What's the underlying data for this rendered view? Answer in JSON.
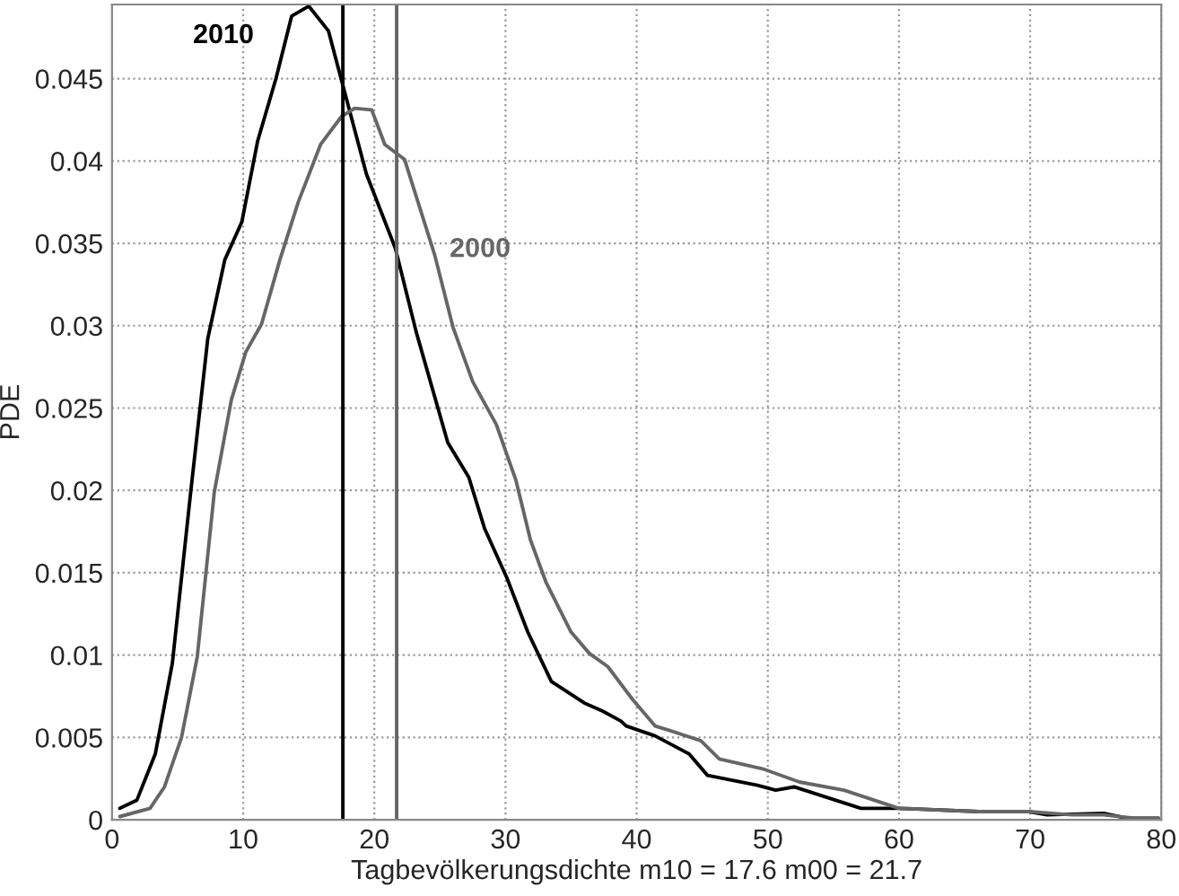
{
  "chart_data": {
    "type": "line",
    "xlabel": "Tagbevölkerungsdichte m10 = 17.6 m00 = 21.7",
    "ylabel": "PDE",
    "series": [
      {
        "name": "2010",
        "color": "#000000",
        "x": [
          0.6,
          1.9,
          3.3,
          4.6,
          6.0,
          7.3,
          8.6,
          9.9,
          11.1,
          12.5,
          13.7,
          15.0,
          16.5,
          17.3,
          19.4,
          21.6,
          23.2,
          25.6,
          27.2,
          28.4,
          30.1,
          31.7,
          33.5,
          36.0,
          37.4,
          38.8,
          39.2,
          41.4,
          44.0,
          45.4,
          49.2,
          50.6,
          52.0,
          57.1,
          60.0,
          66.1,
          69.9,
          71.3,
          75.6,
          77.4,
          79.8
        ],
        "values": [
          0.0007,
          0.0012,
          0.004,
          0.0095,
          0.0199,
          0.0292,
          0.034,
          0.0363,
          0.0412,
          0.045,
          0.0488,
          0.0494,
          0.0479,
          0.0455,
          0.0392,
          0.0347,
          0.0296,
          0.0229,
          0.0208,
          0.0177,
          0.0147,
          0.0114,
          0.0084,
          0.0071,
          0.0066,
          0.006,
          0.0057,
          0.0051,
          0.004,
          0.0027,
          0.0021,
          0.0018,
          0.002,
          0.0007,
          0.0007,
          0.0005,
          0.0005,
          0.0003,
          0.0004,
          0.0001,
          0.0001
        ]
      },
      {
        "name": "2000",
        "color": "#666666",
        "x": [
          0.6,
          2.9,
          4.0,
          5.3,
          6.5,
          7.8,
          9.1,
          10.2,
          11.4,
          12.8,
          14.2,
          15.9,
          17.5,
          18.5,
          19.8,
          20.8,
          22.3,
          24.6,
          26.0,
          27.5,
          29.3,
          30.8,
          31.9,
          33.1,
          35.0,
          36.4,
          37.8,
          39.7,
          41.4,
          43.0,
          44.9,
          46.3,
          49.6,
          52.4,
          55.8,
          60.0,
          66.1,
          69.9,
          73.2,
          75.6,
          78.0,
          79.8
        ],
        "values": [
          0.0002,
          0.0007,
          0.002,
          0.005,
          0.0099,
          0.0199,
          0.0255,
          0.0284,
          0.0301,
          0.034,
          0.0375,
          0.041,
          0.0427,
          0.0432,
          0.0431,
          0.041,
          0.0401,
          0.0343,
          0.0299,
          0.0266,
          0.024,
          0.0206,
          0.017,
          0.0144,
          0.0114,
          0.0101,
          0.0093,
          0.0073,
          0.0057,
          0.0053,
          0.0048,
          0.0037,
          0.0031,
          0.0023,
          0.0018,
          0.0007,
          0.0005,
          0.0005,
          0.0003,
          0.0003,
          0.0001,
          0.0001
        ]
      }
    ],
    "ref_lines": [
      {
        "axis": "x",
        "value": 17.6,
        "color": "#000000"
      },
      {
        "axis": "x",
        "value": 21.7,
        "color": "#666666"
      }
    ],
    "xlim": [
      0,
      80
    ],
    "ylim": [
      0,
      0.0495
    ],
    "xticks": [
      0,
      10,
      20,
      30,
      40,
      50,
      60,
      70,
      80
    ],
    "yticks": [
      0,
      0.005,
      0.01,
      0.015,
      0.02,
      0.025,
      0.03,
      0.035,
      0.04,
      0.045
    ],
    "grid": true,
    "legend": false,
    "line_style": "solid",
    "marker": "none"
  }
}
